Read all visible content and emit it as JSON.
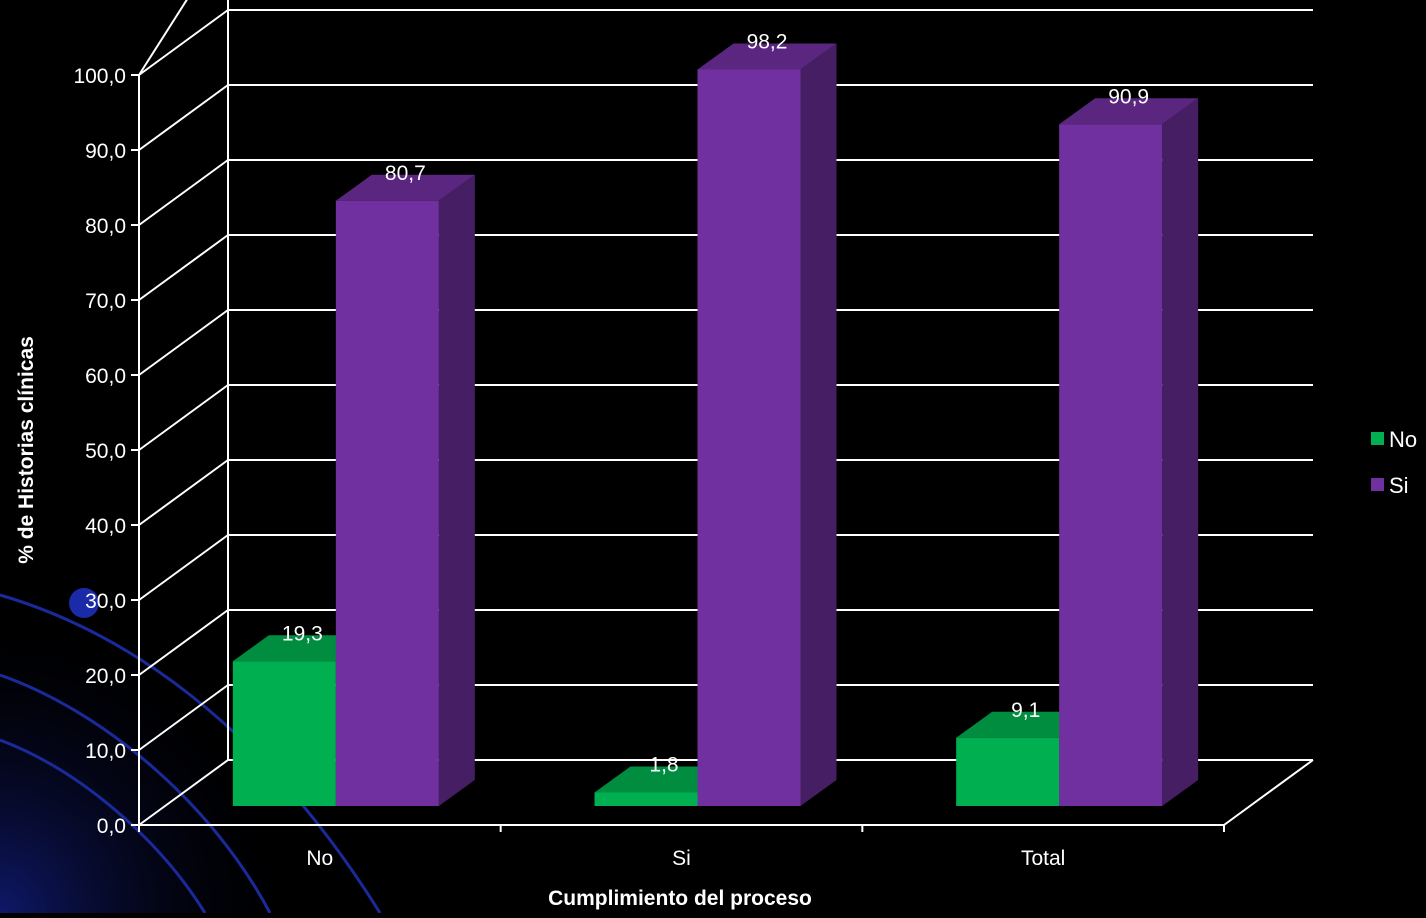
{
  "chart_data": {
    "type": "bar",
    "categories": [
      "No",
      "Si",
      "Total"
    ],
    "series": [
      {
        "name": "No",
        "values": [
          19.3,
          1.8,
          9.1
        ],
        "labels": [
          "19,3",
          "1,8",
          "9,1"
        ]
      },
      {
        "name": "Si",
        "values": [
          80.7,
          98.2,
          90.9
        ],
        "labels": [
          "80,7",
          "98,2",
          "90,9"
        ]
      }
    ],
    "xlabel": "Cumplimiento del proceso",
    "ylabel": "% de  Historias clínicas",
    "ylim": [
      0,
      100
    ],
    "yticks": [
      "0,0",
      "10,0",
      "20,0",
      "30,0",
      "40,0",
      "50,0",
      "60,0",
      "70,0",
      "80,0",
      "90,0",
      "100,0"
    ],
    "grid": true,
    "three_d": true,
    "legend": "right",
    "colors": {
      "background": "#000000",
      "series_no": "#00b050",
      "series_si": "#7030a0",
      "gridline": "#ffffff",
      "text": "#ffffff",
      "decor_curves": "#1a2a9a"
    }
  }
}
